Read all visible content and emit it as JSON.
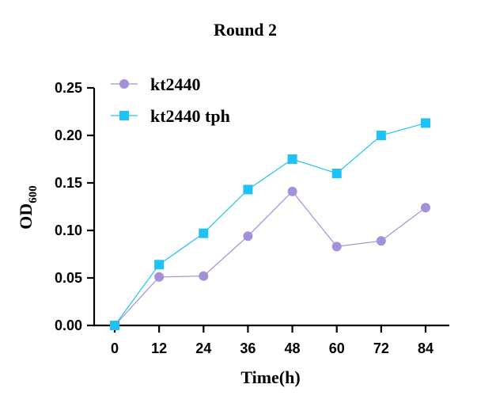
{
  "chart_data": {
    "type": "line",
    "title": "Round 2",
    "xlabel": "Time(h)",
    "ylabel_main": "OD",
    "ylabel_sub": "600",
    "x": [
      0,
      12,
      24,
      36,
      48,
      60,
      72,
      84
    ],
    "x_tick_labels": [
      "0",
      "12",
      "24",
      "36",
      "48",
      "60",
      "72",
      "84"
    ],
    "y_tick_labels": [
      "0.00",
      "0.05",
      "0.10",
      "0.15",
      "0.20",
      "0.25"
    ],
    "y_ticks": [
      0,
      0.05,
      0.1,
      0.15,
      0.2,
      0.25
    ],
    "xlim": [
      0,
      84
    ],
    "ylim": [
      0,
      0.25
    ],
    "grid": false,
    "legend_position": "top-left",
    "series": [
      {
        "name": "kt2440",
        "color": "#a48fd9",
        "marker": "circle",
        "values": [
          0.0,
          0.051,
          0.052,
          0.094,
          0.141,
          0.083,
          0.089,
          0.124
        ]
      },
      {
        "name": "kt2440 tph",
        "color": "#1fc2f7",
        "marker": "square",
        "values": [
          0.0,
          0.064,
          0.097,
          0.143,
          0.175,
          0.16,
          0.2,
          0.213
        ]
      }
    ]
  }
}
